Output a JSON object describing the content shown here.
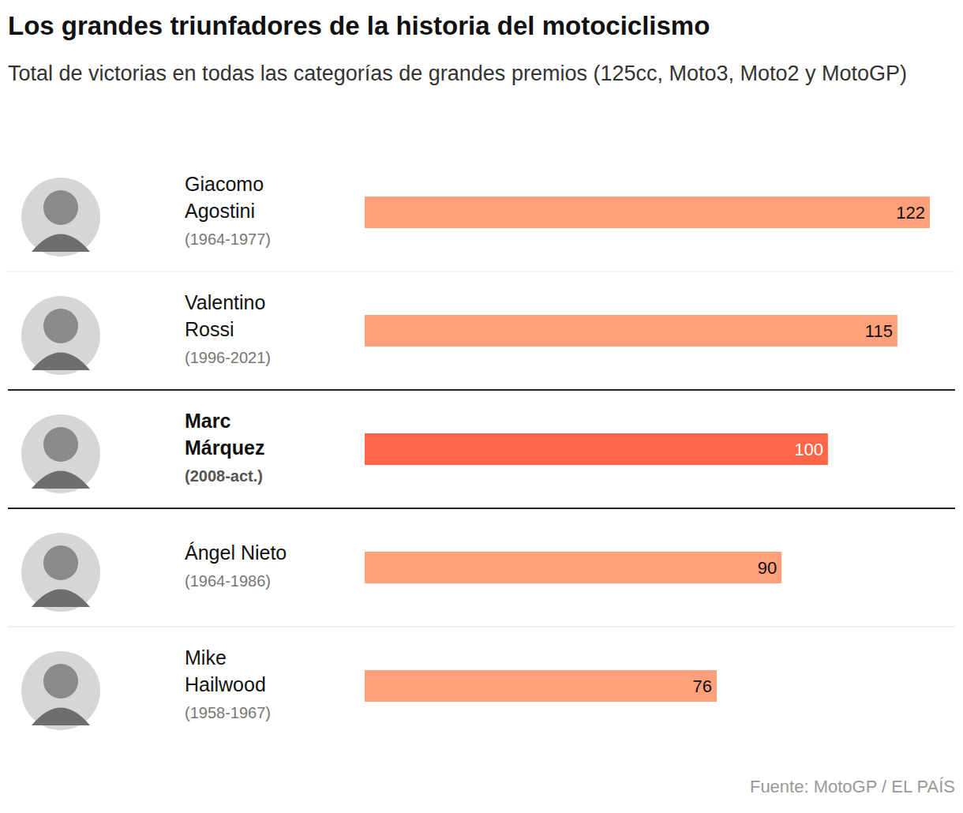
{
  "chart_data": {
    "type": "bar",
    "title": "Los grandes triunfadores de la historia del motociclismo",
    "subtitle": "Total de victorias en todas las categorías de grandes premios (125cc, Moto3, Moto2 y MotoGP)",
    "categories": [
      "Giacomo Agostini",
      "Valentino Rossi",
      "Marc Márquez",
      "Ángel Nieto",
      "Mike Hailwood"
    ],
    "periods": [
      "(1964-1977)",
      "(1996-2021)",
      "(2008-act.)",
      "(1964-1986)",
      "(1958-1967)"
    ],
    "values": [
      122,
      115,
      100,
      90,
      76
    ],
    "colors": [
      "#ffa07a",
      "#ffa07a",
      "#ff6647",
      "#ffa07a",
      "#ffa07a"
    ],
    "orientation": "horizontal",
    "data_labels": true,
    "tick_labels": false,
    "xlim": [
      0,
      122
    ],
    "source": "Fuente: MotoGP / EL PAÍS"
  }
}
